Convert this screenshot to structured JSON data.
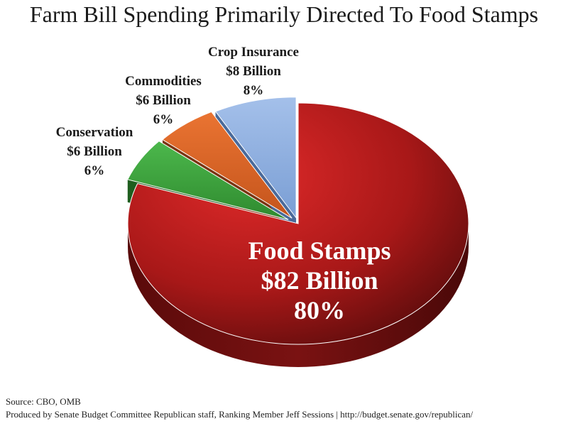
{
  "chart_data": {
    "type": "pie",
    "title": "Farm Bill Spending Primarily Directed To Food Stamps",
    "unit": "Billion",
    "slices": [
      {
        "name": "Food Stamps",
        "amount_label": "$82 Billion",
        "value": 82,
        "percent_label": "80%",
        "color": "#c81e1e",
        "side_color": "#6e1010"
      },
      {
        "name": "Conservation",
        "amount_label": "$6 Billion",
        "value": 6,
        "percent_label": "6%",
        "color": "#3ea83e",
        "side_color": "#1f5e1f"
      },
      {
        "name": "Commodities",
        "amount_label": "$6 Billion",
        "value": 6,
        "percent_label": "6%",
        "color": "#e0662a",
        "side_color": "#7a3512"
      },
      {
        "name": "Crop Insurance",
        "amount_label": "$8 Billion",
        "value": 8,
        "percent_label": "8%",
        "color": "#8fb0e0",
        "side_color": "#4a6a9a"
      }
    ]
  },
  "footer": {
    "source": "Source: CBO, OMB",
    "credit": "Produced by Senate Budget Committee Republican staff, Ranking Member Jeff Sessions | http://budget.senate.gov/republican/"
  }
}
